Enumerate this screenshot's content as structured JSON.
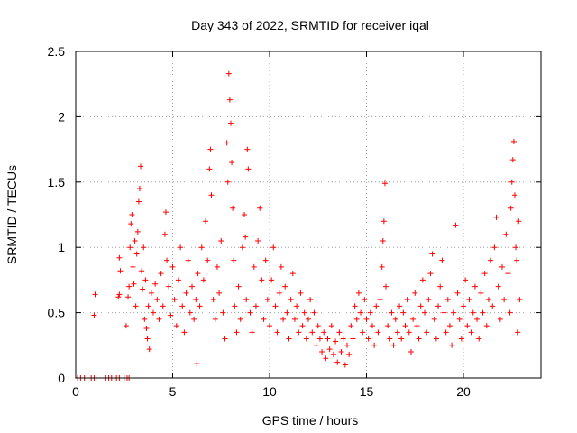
{
  "chart_data": {
    "type": "scatter",
    "title": "Day 343 of 2022, SRMTID for receiver iqal",
    "xlabel": "GPS time / hours",
    "ylabel": "SRMTID / TECUs",
    "xlim": [
      0,
      24
    ],
    "ylim": [
      0,
      2.5
    ],
    "xticks": [
      0,
      5,
      10,
      15,
      20
    ],
    "xtick_labels": [
      "0",
      "5",
      "10",
      "15",
      "20"
    ],
    "yticks": [
      0,
      0.5,
      1,
      1.5,
      2,
      2.5
    ],
    "ytick_labels": [
      "0",
      "0.5",
      "1",
      "1.5",
      "2",
      "2.5"
    ],
    "grid": true,
    "marker": "+",
    "color": "#ff0000",
    "series": [
      {
        "name": "SRMTID",
        "points": [
          [
            0.1,
            0
          ],
          [
            0.25,
            0
          ],
          [
            0.45,
            0
          ],
          [
            0.8,
            0
          ],
          [
            0.95,
            0
          ],
          [
            1.05,
            0
          ],
          [
            1.55,
            0
          ],
          [
            1.7,
            0
          ],
          [
            1.85,
            0
          ],
          [
            2.1,
            0
          ],
          [
            2.25,
            0
          ],
          [
            2.5,
            0
          ],
          [
            2.65,
            0
          ],
          [
            2.75,
            0
          ],
          [
            1.0,
            0.64
          ],
          [
            0.95,
            0.48
          ],
          [
            2.2,
            0.62
          ],
          [
            2.25,
            0.64
          ],
          [
            2.3,
            0.82
          ],
          [
            2.25,
            0.92
          ],
          [
            2.6,
            0.4
          ],
          [
            2.7,
            0.62
          ],
          [
            2.75,
            0.7
          ],
          [
            2.8,
            1.0
          ],
          [
            2.85,
            1.18
          ],
          [
            2.9,
            1.25
          ],
          [
            2.95,
            0.85
          ],
          [
            3.0,
            0.72
          ],
          [
            3.05,
            1.05
          ],
          [
            3.1,
            0.55
          ],
          [
            3.15,
            0.95
          ],
          [
            3.2,
            1.12
          ],
          [
            3.25,
            1.35
          ],
          [
            3.3,
            1.45
          ],
          [
            3.35,
            1.62
          ],
          [
            3.4,
            0.82
          ],
          [
            3.45,
            0.68
          ],
          [
            3.5,
            1.0
          ],
          [
            3.55,
            0.45
          ],
          [
            3.6,
            0.75
          ],
          [
            3.65,
            0.38
          ],
          [
            3.7,
            0.3
          ],
          [
            3.75,
            0.55
          ],
          [
            3.8,
            0.22
          ],
          [
            3.9,
            0.65
          ],
          [
            4.0,
            0.5
          ],
          [
            4.1,
            0.72
          ],
          [
            4.2,
            0.6
          ],
          [
            4.3,
            0.45
          ],
          [
            4.4,
            0.8
          ],
          [
            4.5,
            0.55
          ],
          [
            4.6,
            1.1
          ],
          [
            4.65,
            1.27
          ],
          [
            4.7,
            0.9
          ],
          [
            4.8,
            0.7
          ],
          [
            4.9,
            0.48
          ],
          [
            5.0,
            0.85
          ],
          [
            5.1,
            0.6
          ],
          [
            5.2,
            0.4
          ],
          [
            5.3,
            0.75
          ],
          [
            5.4,
            1.0
          ],
          [
            5.5,
            0.55
          ],
          [
            5.6,
            0.35
          ],
          [
            5.7,
            0.65
          ],
          [
            5.8,
            0.9
          ],
          [
            5.9,
            0.5
          ],
          [
            6.0,
            0.7
          ],
          [
            6.1,
            0.45
          ],
          [
            6.2,
            0.6
          ],
          [
            6.25,
            0.11
          ],
          [
            6.3,
            0.8
          ],
          [
            6.4,
            0.55
          ],
          [
            6.5,
            1.0
          ],
          [
            6.6,
            0.75
          ],
          [
            6.7,
            1.2
          ],
          [
            6.8,
            0.9
          ],
          [
            6.9,
            1.6
          ],
          [
            6.95,
            1.75
          ],
          [
            7.0,
            1.4
          ],
          [
            7.1,
            0.6
          ],
          [
            7.2,
            0.45
          ],
          [
            7.3,
            0.85
          ],
          [
            7.4,
            0.65
          ],
          [
            7.5,
            1.05
          ],
          [
            7.6,
            0.5
          ],
          [
            7.7,
            0.3
          ],
          [
            7.8,
            1.8
          ],
          [
            7.85,
            1.5
          ],
          [
            7.9,
            2.33
          ],
          [
            7.95,
            2.13
          ],
          [
            8.0,
            1.95
          ],
          [
            8.05,
            1.65
          ],
          [
            8.1,
            1.3
          ],
          [
            8.15,
            0.9
          ],
          [
            8.2,
            0.55
          ],
          [
            8.3,
            0.35
          ],
          [
            8.4,
            0.7
          ],
          [
            8.5,
            0.45
          ],
          [
            8.6,
            1.0
          ],
          [
            8.7,
            1.25
          ],
          [
            8.75,
            1.08
          ],
          [
            8.8,
            0.6
          ],
          [
            8.85,
            1.75
          ],
          [
            8.9,
            1.6
          ],
          [
            9.0,
            0.5
          ],
          [
            9.1,
            0.35
          ],
          [
            9.2,
            0.85
          ],
          [
            9.3,
            0.55
          ],
          [
            9.4,
            1.05
          ],
          [
            9.5,
            1.3
          ],
          [
            9.6,
            0.75
          ],
          [
            9.7,
            0.45
          ],
          [
            9.8,
            0.9
          ],
          [
            9.9,
            0.6
          ],
          [
            10.0,
            0.4
          ],
          [
            10.1,
            0.75
          ],
          [
            10.2,
            1.0
          ],
          [
            10.3,
            0.55
          ],
          [
            10.4,
            0.35
          ],
          [
            10.5,
            0.65
          ],
          [
            10.6,
            0.85
          ],
          [
            10.7,
            0.45
          ],
          [
            10.8,
            0.7
          ],
          [
            10.9,
            0.5
          ],
          [
            11.0,
            0.3
          ],
          [
            11.1,
            0.6
          ],
          [
            11.2,
            0.8
          ],
          [
            11.3,
            0.45
          ],
          [
            11.4,
            0.55
          ],
          [
            11.5,
            0.35
          ],
          [
            11.6,
            0.65
          ],
          [
            11.7,
            0.4
          ],
          [
            11.8,
            0.5
          ],
          [
            11.9,
            0.3
          ],
          [
            12.0,
            0.45
          ],
          [
            12.1,
            0.6
          ],
          [
            12.2,
            0.35
          ],
          [
            12.3,
            0.5
          ],
          [
            12.4,
            0.25
          ],
          [
            12.5,
            0.4
          ],
          [
            12.6,
            0.3
          ],
          [
            12.7,
            0.2
          ],
          [
            12.8,
            0.35
          ],
          [
            12.9,
            0.15
          ],
          [
            13.0,
            0.3
          ],
          [
            13.1,
            0.22
          ],
          [
            13.2,
            0.4
          ],
          [
            13.3,
            0.18
          ],
          [
            13.4,
            0.28
          ],
          [
            13.5,
            0.12
          ],
          [
            13.6,
            0.35
          ],
          [
            13.7,
            0.2
          ],
          [
            13.8,
            0.3
          ],
          [
            13.9,
            0.1
          ],
          [
            14.0,
            0.25
          ],
          [
            14.1,
            0.18
          ],
          [
            14.2,
            0.4
          ],
          [
            14.3,
            0.3
          ],
          [
            14.4,
            0.55
          ],
          [
            14.5,
            0.45
          ],
          [
            14.6,
            0.65
          ],
          [
            14.7,
            0.5
          ],
          [
            14.8,
            0.35
          ],
          [
            14.9,
            0.6
          ],
          [
            15.0,
            0.45
          ],
          [
            15.1,
            0.3
          ],
          [
            15.2,
            0.5
          ],
          [
            15.3,
            0.4
          ],
          [
            15.4,
            0.25
          ],
          [
            15.5,
            0.55
          ],
          [
            15.6,
            0.35
          ],
          [
            15.7,
            0.6
          ],
          [
            15.8,
            0.85
          ],
          [
            15.85,
            1.05
          ],
          [
            15.9,
            1.2
          ],
          [
            15.95,
            1.49
          ],
          [
            16.0,
            0.7
          ],
          [
            16.1,
            0.4
          ],
          [
            16.2,
            0.3
          ],
          [
            16.3,
            0.5
          ],
          [
            16.4,
            0.25
          ],
          [
            16.5,
            0.45
          ],
          [
            16.6,
            0.35
          ],
          [
            16.7,
            0.55
          ],
          [
            16.8,
            0.3
          ],
          [
            16.9,
            0.5
          ],
          [
            17.0,
            0.4
          ],
          [
            17.1,
            0.6
          ],
          [
            17.2,
            0.35
          ],
          [
            17.3,
            0.2
          ],
          [
            17.4,
            0.45
          ],
          [
            17.5,
            0.65
          ],
          [
            17.6,
            0.4
          ],
          [
            17.7,
            0.3
          ],
          [
            17.8,
            0.55
          ],
          [
            17.9,
            0.75
          ],
          [
            18.0,
            0.5
          ],
          [
            18.1,
            0.35
          ],
          [
            18.2,
            0.6
          ],
          [
            18.3,
            0.8
          ],
          [
            18.4,
            0.95
          ],
          [
            18.5,
            0.45
          ],
          [
            18.6,
            0.3
          ],
          [
            18.7,
            0.55
          ],
          [
            18.8,
            0.7
          ],
          [
            18.9,
            0.9
          ],
          [
            19.0,
            0.5
          ],
          [
            19.1,
            0.35
          ],
          [
            19.2,
            0.6
          ],
          [
            19.3,
            0.4
          ],
          [
            19.4,
            0.25
          ],
          [
            19.5,
            0.5
          ],
          [
            19.6,
            1.17
          ],
          [
            19.7,
            0.65
          ],
          [
            19.8,
            0.45
          ],
          [
            19.9,
            0.3
          ],
          [
            20.0,
            0.55
          ],
          [
            20.1,
            0.75
          ],
          [
            20.2,
            0.4
          ],
          [
            20.3,
            0.6
          ],
          [
            20.4,
            0.35
          ],
          [
            20.5,
            0.5
          ],
          [
            20.6,
            0.7
          ],
          [
            20.7,
            0.45
          ],
          [
            20.8,
            0.3
          ],
          [
            20.9,
            0.65
          ],
          [
            21.0,
            0.5
          ],
          [
            21.1,
            0.8
          ],
          [
            21.2,
            0.4
          ],
          [
            21.3,
            0.6
          ],
          [
            21.4,
            0.9
          ],
          [
            21.5,
            0.55
          ],
          [
            21.6,
            1.0
          ],
          [
            21.7,
            1.23
          ],
          [
            21.8,
            0.7
          ],
          [
            21.9,
            0.45
          ],
          [
            22.0,
            0.85
          ],
          [
            22.1,
            0.6
          ],
          [
            22.2,
            1.1
          ],
          [
            22.3,
            0.8
          ],
          [
            22.4,
            0.5
          ],
          [
            22.45,
            1.3
          ],
          [
            22.5,
            1.5
          ],
          [
            22.55,
            1.67
          ],
          [
            22.6,
            1.81
          ],
          [
            22.65,
            1.4
          ],
          [
            22.7,
            1.0
          ],
          [
            22.75,
            0.9
          ],
          [
            22.8,
            0.35
          ],
          [
            22.85,
            1.2
          ],
          [
            22.9,
            0.6
          ]
        ]
      }
    ]
  }
}
